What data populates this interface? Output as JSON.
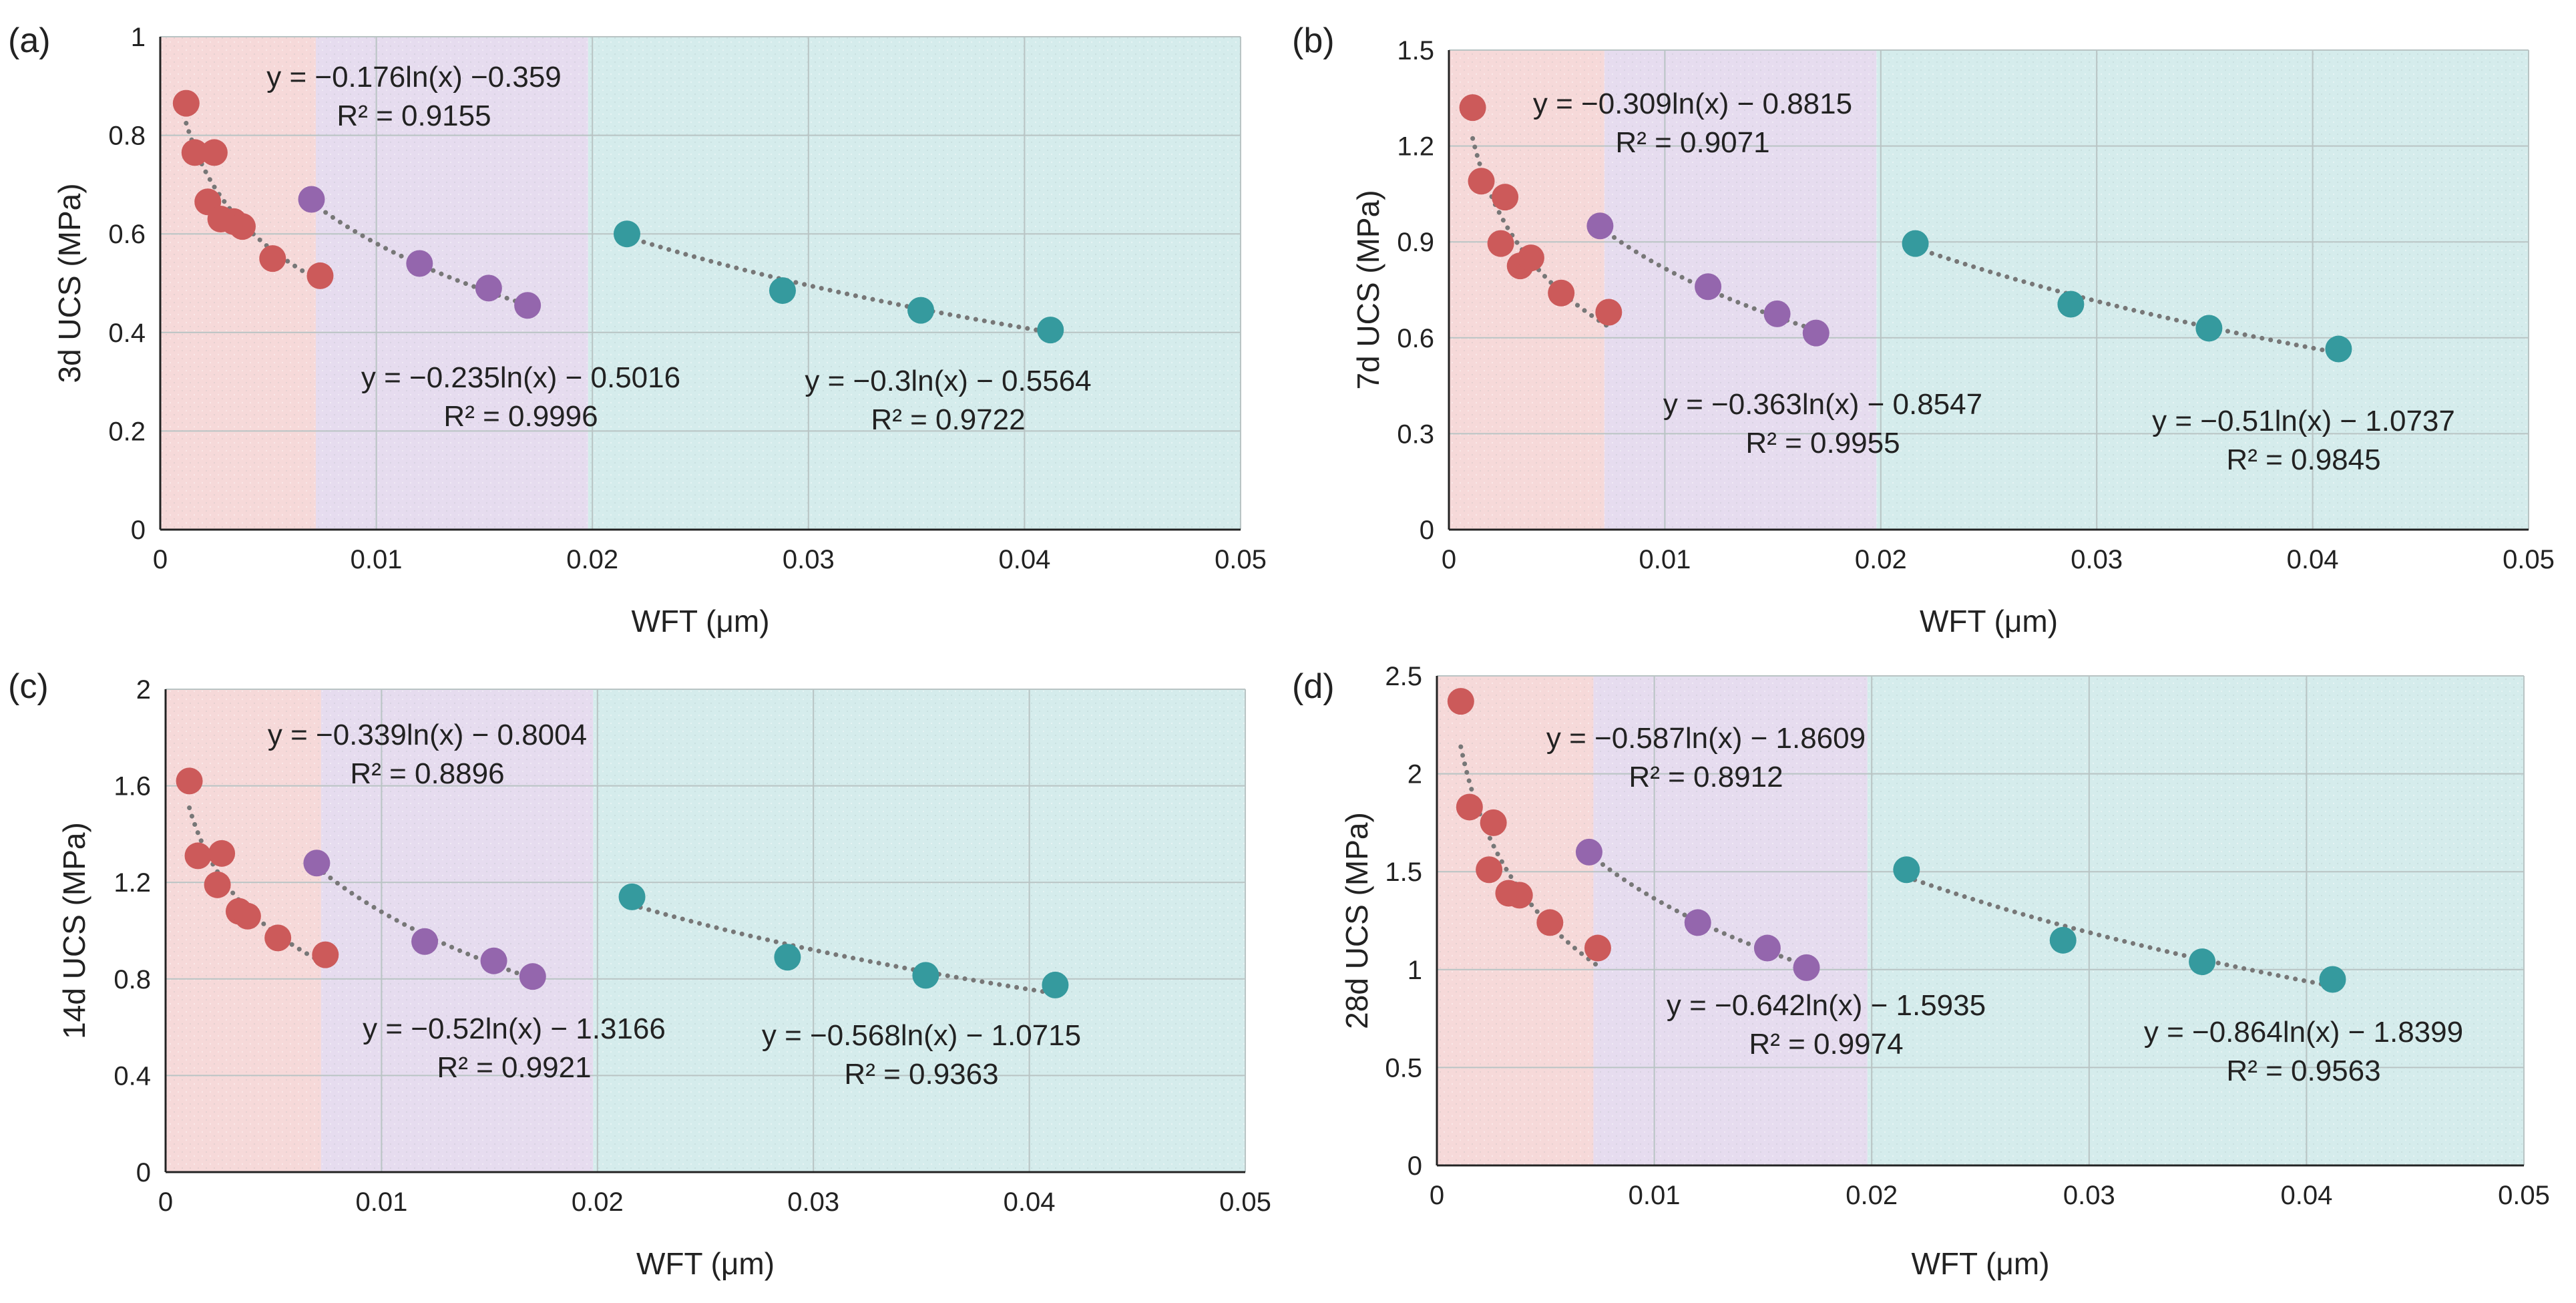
{
  "figure": {
    "colors": {
      "red_region": "#f6d9d9",
      "purple_region": "#e6dcef",
      "teal_region": "#d5ecec",
      "red_point": "#cc5a5a",
      "purple_point": "#9466ad",
      "teal_point": "#359a9e",
      "trend_line": "#777777",
      "grid": "#b9c4c4",
      "axis": "#222222"
    }
  },
  "chart_data": [
    {
      "type": "scatter",
      "panel": "(a)",
      "title": "",
      "xlabel": "WFT (μm)",
      "ylabel": "3d UCS (MPa)",
      "xlim": [
        0,
        0.05
      ],
      "ylim": [
        0,
        1
      ],
      "xticks": [
        0,
        0.01,
        0.02,
        0.03,
        0.04,
        0.05
      ],
      "xtick_labels": [
        "0",
        "0.01",
        "0.02",
        "0.03",
        "0.04",
        "0.05"
      ],
      "yticks": [
        0,
        0.2,
        0.4,
        0.6,
        0.8,
        1
      ],
      "ytick_labels": [
        "0",
        "0.2",
        "0.4",
        "0.6",
        "0.8",
        "1"
      ],
      "regions": [
        [
          0,
          0.0072
        ],
        [
          0.0072,
          0.0198
        ],
        [
          0.0198,
          0.05
        ]
      ],
      "series": [
        {
          "name": "red",
          "x": [
            0.0012,
            0.0016,
            0.0022,
            0.0025,
            0.0028,
            0.0034,
            0.0038,
            0.0052,
            0.0074
          ],
          "y": [
            0.865,
            0.765,
            0.665,
            0.765,
            0.63,
            0.625,
            0.615,
            0.55,
            0.515
          ],
          "fit": {
            "a": -0.176,
            "b": -0.359,
            "x_range": [
              0.0012,
              0.0074
            ]
          },
          "equation": "y = −0.176ln(x) −0.359",
          "r2": "R² = 0.9155"
        },
        {
          "name": "purple",
          "x": [
            0.007,
            0.012,
            0.0152,
            0.017
          ],
          "y": [
            0.67,
            0.54,
            0.49,
            0.455
          ],
          "fit": {
            "a": -0.235,
            "b": -0.5016,
            "x_range": [
              0.007,
              0.017
            ]
          },
          "equation": "y = −0.235ln(x) − 0.5016",
          "r2": "R² = 0.9996"
        },
        {
          "name": "teal",
          "x": [
            0.0216,
            0.0288,
            0.0352,
            0.0412
          ],
          "y": [
            0.6,
            0.485,
            0.445,
            0.405
          ],
          "fit": {
            "a": -0.3,
            "b": -0.5564,
            "x_range": [
              0.0216,
              0.0412
            ]
          },
          "equation": "y = −0.3ln(x) − 0.5564",
          "r2": "R² = 0.9722"
        }
      ]
    },
    {
      "type": "scatter",
      "panel": "(b)",
      "title": "",
      "xlabel": "WFT (μm)",
      "ylabel": "7d UCS (MPa)",
      "xlim": [
        0,
        0.05
      ],
      "ylim": [
        0,
        1.5
      ],
      "xticks": [
        0,
        0.01,
        0.02,
        0.03,
        0.04,
        0.05
      ],
      "xtick_labels": [
        "0",
        "0.01",
        "0.02",
        "0.03",
        "0.04",
        "0.05"
      ],
      "yticks": [
        0,
        0.3,
        0.6,
        0.9,
        1.2,
        1.5
      ],
      "ytick_labels": [
        "0",
        "0.3",
        "0.6",
        "0.9",
        "1.2",
        "1.5"
      ],
      "regions": [
        [
          0,
          0.0072
        ],
        [
          0.0072,
          0.0198
        ],
        [
          0.0198,
          0.05
        ]
      ],
      "series": [
        {
          "name": "red",
          "x": [
            0.0011,
            0.0015,
            0.0024,
            0.0026,
            0.0033,
            0.0038,
            0.0052,
            0.0074
          ],
          "y": [
            1.32,
            1.09,
            0.895,
            1.04,
            0.825,
            0.85,
            0.74,
            0.68
          ],
          "fit": {
            "a": -0.309,
            "b": -0.8815,
            "x_range": [
              0.0011,
              0.0074
            ]
          },
          "equation": "y = −0.309ln(x) − 0.8815",
          "r2": "R² = 0.9071"
        },
        {
          "name": "purple",
          "x": [
            0.007,
            0.012,
            0.0152,
            0.017
          ],
          "y": [
            0.95,
            0.76,
            0.675,
            0.615
          ],
          "fit": {
            "a": -0.363,
            "b": -0.8547,
            "x_range": [
              0.007,
              0.017
            ]
          },
          "equation": "y = −0.363ln(x) − 0.8547",
          "r2": "R² = 0.9955"
        },
        {
          "name": "teal",
          "x": [
            0.0216,
            0.0288,
            0.0352,
            0.0412
          ],
          "y": [
            0.895,
            0.705,
            0.63,
            0.565
          ],
          "fit": {
            "a": -0.51,
            "b": -1.0737,
            "x_range": [
              0.0216,
              0.0412
            ]
          },
          "equation": "y = −0.51ln(x) − 1.0737",
          "r2": "R² = 0.9845"
        }
      ]
    },
    {
      "type": "scatter",
      "panel": "(c)",
      "title": "",
      "xlabel": "WFT (μm)",
      "ylabel": "14d UCS (MPa)",
      "xlim": [
        0,
        0.05
      ],
      "ylim": [
        0,
        2
      ],
      "xticks": [
        0,
        0.01,
        0.02,
        0.03,
        0.04,
        0.05
      ],
      "xtick_labels": [
        "0",
        "0.01",
        "0.02",
        "0.03",
        "0.04",
        "0.05"
      ],
      "yticks": [
        0,
        0.4,
        0.8,
        1.2,
        1.6,
        2
      ],
      "ytick_labels": [
        "0",
        "0.4",
        "0.8",
        "1.2",
        "1.6",
        "2"
      ],
      "regions": [
        [
          0,
          0.0072
        ],
        [
          0.0072,
          0.0198
        ],
        [
          0.0198,
          0.05
        ]
      ],
      "series": [
        {
          "name": "red",
          "x": [
            0.0011,
            0.0015,
            0.0024,
            0.0026,
            0.0034,
            0.0038,
            0.0052,
            0.0074
          ],
          "y": [
            1.62,
            1.31,
            1.19,
            1.32,
            1.08,
            1.06,
            0.97,
            0.9
          ],
          "fit": {
            "a": -0.339,
            "b": -0.8004,
            "x_range": [
              0.0011,
              0.0074
            ]
          },
          "equation": "y = −0.339ln(x) − 0.8004",
          "r2": "R² = 0.8896"
        },
        {
          "name": "purple",
          "x": [
            0.007,
            0.012,
            0.0152,
            0.017
          ],
          "y": [
            1.28,
            0.955,
            0.875,
            0.81
          ],
          "fit": {
            "a": -0.52,
            "b": -1.3166,
            "x_range": [
              0.007,
              0.017
            ]
          },
          "equation": "y = −0.52ln(x) − 1.3166",
          "r2": "R² = 0.9921"
        },
        {
          "name": "teal",
          "x": [
            0.0216,
            0.0288,
            0.0352,
            0.0412
          ],
          "y": [
            1.14,
            0.89,
            0.815,
            0.775
          ],
          "fit": {
            "a": -0.568,
            "b": -1.0715,
            "x_range": [
              0.0216,
              0.0412
            ]
          },
          "equation": "y = −0.568ln(x) − 1.0715",
          "r2": "R² = 0.9363"
        }
      ]
    },
    {
      "type": "scatter",
      "panel": "(d)",
      "title": "",
      "xlabel": "WFT (μm)",
      "ylabel": "28d UCS (MPa)",
      "xlim": [
        0,
        0.05
      ],
      "ylim": [
        0,
        2.5
      ],
      "xticks": [
        0,
        0.01,
        0.02,
        0.03,
        0.04,
        0.05
      ],
      "xtick_labels": [
        "0",
        "0.01",
        "0.02",
        "0.03",
        "0.04",
        "0.05"
      ],
      "yticks": [
        0,
        0.5,
        1,
        1.5,
        2,
        2.5
      ],
      "ytick_labels": [
        "0",
        "0.5",
        "1",
        "1.5",
        "2",
        "2.5"
      ],
      "regions": [
        [
          0,
          0.0072
        ],
        [
          0.0072,
          0.0198
        ],
        [
          0.0198,
          0.05
        ]
      ],
      "series": [
        {
          "name": "red",
          "x": [
            0.0011,
            0.0015,
            0.0024,
            0.0026,
            0.0033,
            0.0038,
            0.0052,
            0.0074
          ],
          "y": [
            2.37,
            1.83,
            1.51,
            1.75,
            1.39,
            1.38,
            1.24,
            1.11
          ],
          "fit": {
            "a": -0.587,
            "b": -1.8609,
            "x_range": [
              0.0011,
              0.0074
            ]
          },
          "equation": "y = −0.587ln(x) − 1.8609",
          "r2": "R² = 0.8912"
        },
        {
          "name": "purple",
          "x": [
            0.007,
            0.012,
            0.0152,
            0.017
          ],
          "y": [
            1.6,
            1.24,
            1.11,
            1.01
          ],
          "fit": {
            "a": -0.642,
            "b": -1.5935,
            "x_range": [
              0.007,
              0.017
            ]
          },
          "equation": "y = −0.642ln(x) − 1.5935",
          "r2": "R² = 0.9974"
        },
        {
          "name": "teal",
          "x": [
            0.0216,
            0.0288,
            0.0352,
            0.0412
          ],
          "y": [
            1.51,
            1.15,
            1.04,
            0.95
          ],
          "fit": {
            "a": -0.864,
            "b": -1.8399,
            "x_range": [
              0.0216,
              0.0412
            ]
          },
          "equation": "y = −0.864ln(x) − 1.8399",
          "r2": "R² = 0.9563"
        }
      ]
    }
  ]
}
